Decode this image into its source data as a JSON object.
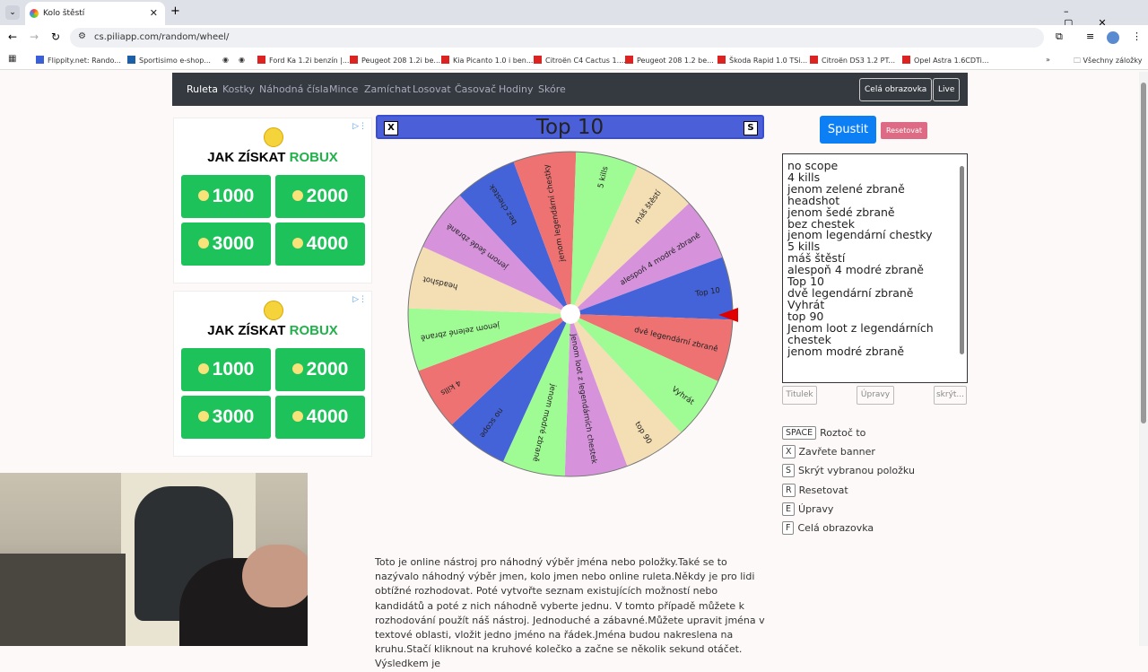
{
  "browser": {
    "tab_title": "Kolo štěstí",
    "url": "cs.piliapp.com/random/wheel/",
    "bookmarks": [
      "Flippity.net: Rando...",
      "Sportisimo e-shop...",
      "Ford Ka 1.2i benzín |...",
      "Peugeot 208 1.2i be...",
      "Kia Picanto 1.0 i ben...",
      "Citroën C4 Cactus 1....",
      "Peugeot 208 1.2 be...",
      "Škoda Rapid 1.0 TSi...",
      "Citroën DS3 1.2 PT...",
      "Opel Astra 1.6CDTi..."
    ],
    "all_bookmarks": "Všechny záložky"
  },
  "nav": {
    "items": [
      "Ruleta",
      "Kostky",
      "Náhodná čísla",
      "Mince",
      "Zamíchat",
      "Losovat",
      "Časovač",
      "Hodiny",
      "Skóre"
    ],
    "fullscreen": "Celá obrazovka",
    "live": "Live"
  },
  "ads": [
    {
      "title": "JAK ZÍSKAT",
      "accent": "ROBUX",
      "amounts": [
        "1000",
        "2000",
        "3000",
        "4000"
      ]
    },
    {
      "title": "JAK ZÍSKAT",
      "accent": "ROBUX",
      "amounts": [
        "1000",
        "2000",
        "3000",
        "4000"
      ]
    }
  ],
  "banner": {
    "result": "Top 10",
    "close_key": "X",
    "hide_key": "S"
  },
  "wheel": {
    "segments": [
      {
        "label": "no scope",
        "color": "#4563d9"
      },
      {
        "label": "4 kills",
        "color": "#ee7272"
      },
      {
        "label": "jenom zelené zbraně",
        "color": "#9ffb93"
      },
      {
        "label": "headshot",
        "color": "#f4deb4"
      },
      {
        "label": "jenom šedé zbraně",
        "color": "#d693dc"
      },
      {
        "label": "bez chestek",
        "color": "#4563d9"
      },
      {
        "label": "jenom legendární chestky",
        "color": "#ee7272"
      },
      {
        "label": "5 kills",
        "color": "#9ffb93"
      },
      {
        "label": "máš štěstí",
        "color": "#f4deb4"
      },
      {
        "label": "alespoň 4 modré zbraně",
        "color": "#d693dc"
      },
      {
        "label": "Top 10",
        "color": "#4563d9"
      },
      {
        "label": "dvě legendární zbraně",
        "color": "#ee7272"
      },
      {
        "label": "Vyhrát",
        "color": "#9ffb93"
      },
      {
        "label": "top 90",
        "color": "#f4deb4"
      },
      {
        "label": "Jenom loot z legendárních chestek",
        "color": "#d693dc"
      },
      {
        "label": "jenom modré zbraně",
        "color": "#9ffb93"
      }
    ],
    "pointer_color": "#e00000"
  },
  "controls": {
    "spin": "Spustit",
    "reset": "Resetovat",
    "textarea": "no scope\n4 kills\njenom zelené zbraně\nheadshot\njenom šedé zbraně\nbez chestek\njenom legendární chestky\n5 kills\nmáš štěstí\nalespoň 4 modré zbraně\nTop 10\ndvě legendární zbraně\nVyhrát\ntop 90\nJenom loot z legendárních\nchestek\njenom modré zbraně",
    "title_btn": "Titulek",
    "edit_btn": "Úpravy",
    "hide_btn": "skrýt..."
  },
  "shortcuts": [
    {
      "key": "SPACE",
      "label": "Roztoč to"
    },
    {
      "key": "X",
      "label": "Zavřete banner"
    },
    {
      "key": "S",
      "label": "Skrýt vybranou položku"
    },
    {
      "key": "R",
      "label": "Resetovat"
    },
    {
      "key": "E",
      "label": "Úpravy"
    },
    {
      "key": "F",
      "label": "Celá obrazovka"
    }
  ],
  "description": "Toto je online nástroj pro náhodný výběr jména nebo položky.Také se to nazývalo náhodný výběr jmen, kolo jmen nebo online ruleta.Někdy je pro lidi obtížné rozhodovat. Poté vytvořte seznam existujících možností nebo kandidátů a poté z nich náhodně vyberte jednu. V tomto případě můžete k rozhodování použít náš nástroj. Jednoduché a zábavné.Můžete upravit jména v textové oblasti, vložit jedno jméno na řádek.Jména budou nakreslena na kruhu.Stačí kliknout na kruhové kolečko a začne se několik sekund otáčet. Výsledkem je"
}
